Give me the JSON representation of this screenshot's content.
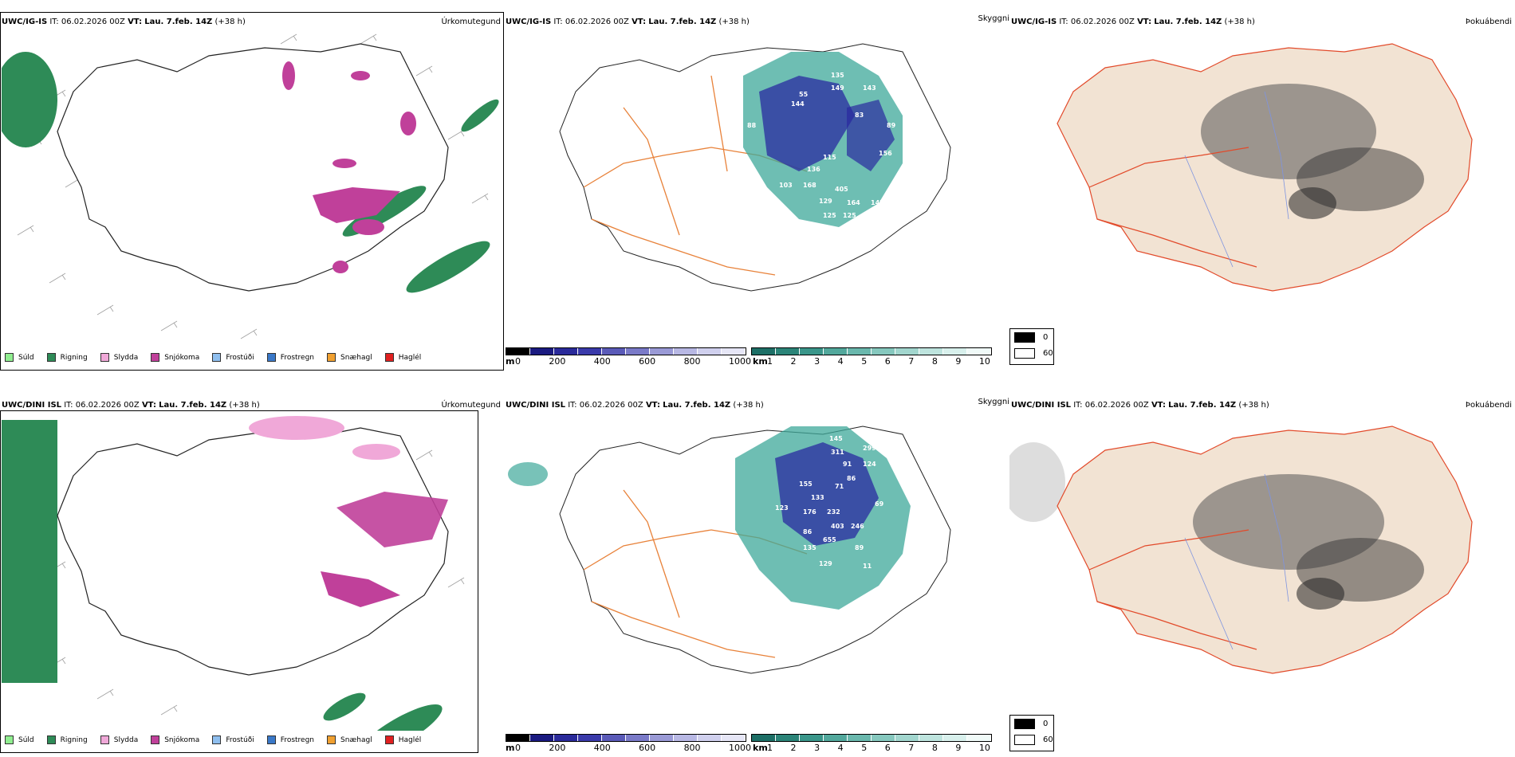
{
  "left_panels": [
    {
      "model": "UWC/IG-IS",
      "it_label": "IT:",
      "it_value": "06.02.2026 00Z",
      "vt_label": "VT:",
      "vt_value": "Lau. 7.feb. 14Z",
      "lead": "(+38 h)",
      "title": "Úrkomutegund"
    },
    {
      "model": "UWC/DINI ISL",
      "it_label": "IT:",
      "it_value": "06.02.2026 00Z",
      "vt_label": "VT:",
      "vt_value": "Lau. 7.feb. 14Z",
      "lead": "(+38 h)",
      "title": "Úrkomutegund"
    }
  ],
  "mid_panels": [
    {
      "model": "UWC/IG-IS",
      "it_label": "IT:",
      "it_value": "06.02.2026 00Z",
      "vt_label": "VT:",
      "vt_value": "Lau. 7.feb. 14Z",
      "lead": "(+38 h)",
      "title": "Skyggni"
    },
    {
      "model": "UWC/DINI ISL",
      "it_label": "IT:",
      "it_value": "06.02.2026 00Z",
      "vt_label": "VT:",
      "vt_value": "Lau. 7.feb. 14Z",
      "lead": "(+38 h)",
      "title": "Skyggni"
    }
  ],
  "right_panels": [
    {
      "model": "UWC/IG-IS",
      "it_label": "IT:",
      "it_value": "06.02.2026 00Z",
      "vt_label": "VT:",
      "vt_value": "Lau. 7.feb. 14Z",
      "lead": "(+38 h)",
      "title": "Þokuábendi"
    },
    {
      "model": "UWC/DINI ISL",
      "it_label": "IT:",
      "it_value": "06.02.2026 00Z",
      "vt_label": "VT:",
      "vt_value": "Lau. 7.feb. 14Z",
      "lead": "(+38 h)",
      "title": "Þokuábendi"
    }
  ],
  "precip_legend": [
    {
      "label": "Súld",
      "color": "#90ee90"
    },
    {
      "label": "Rigning",
      "color": "#2e8b57"
    },
    {
      "label": "Slydda",
      "color": "#f0a8d8"
    },
    {
      "label": "Snjókoma",
      "color": "#c0409a"
    },
    {
      "label": "Frostúði",
      "color": "#8fbfef"
    },
    {
      "label": "Frostregn",
      "color": "#3a78c8"
    },
    {
      "label": "Snæhagl",
      "color": "#f0a030"
    },
    {
      "label": "Haglél",
      "color": "#e02020"
    }
  ],
  "height_scale": {
    "unit": "m",
    "ticks": [
      "0",
      "200",
      "400",
      "600",
      "800",
      "1000"
    ]
  },
  "visibility_scale": {
    "unit": "km",
    "ticks": [
      "1",
      "2",
      "3",
      "4",
      "5",
      "6",
      "7",
      "8",
      "9",
      "10"
    ]
  },
  "fog_scale": {
    "ticks": [
      "0",
      "60"
    ]
  },
  "visibility_labels_top": [
    "135",
    "149",
    "143",
    "55",
    "144",
    "83",
    "88",
    "89",
    "156",
    "115",
    "136",
    "103",
    "168",
    "405",
    "129",
    "164",
    "147",
    "125",
    "125"
  ],
  "visibility_labels_bottom": [
    "102",
    "145",
    "311",
    "299",
    "91",
    "124",
    "86",
    "71",
    "155",
    "133",
    "123",
    "176",
    "232",
    "69",
    "403",
    "246",
    "86",
    "655",
    "89",
    "135",
    "129",
    "11"
  ],
  "colors": {
    "rain": "#2e8b57",
    "snow": "#c0409a",
    "sleet": "#f0a8d8",
    "roads": "#e8823a",
    "land": "#f2e3d3"
  }
}
